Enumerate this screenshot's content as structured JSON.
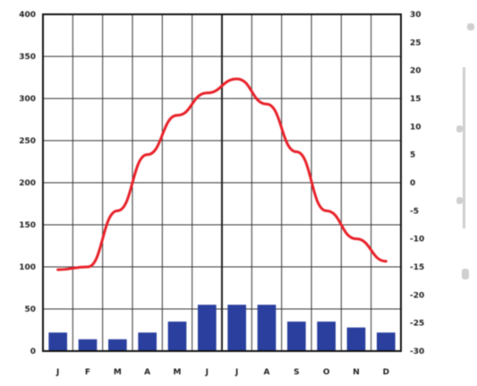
{
  "chart_data": {
    "type": "bar",
    "title": "",
    "xlabel": "",
    "categories": [
      "J",
      "F",
      "M",
      "A",
      "M",
      "J",
      "J",
      "A",
      "S",
      "O",
      "N",
      "D"
    ],
    "left_axis": {
      "ylim": [
        0,
        400
      ],
      "ticks": [
        0,
        50,
        100,
        150,
        200,
        250,
        300,
        350,
        400
      ]
    },
    "right_axis": {
      "ylim": [
        -30,
        30
      ],
      "ticks": [
        -30,
        -25,
        -20,
        -15,
        -10,
        -5,
        0,
        5,
        10,
        15,
        20,
        25,
        30
      ]
    },
    "series": [
      {
        "kind": "bar",
        "axis": "left",
        "color": "#2a3f9e",
        "values": [
          22,
          14,
          14,
          22,
          35,
          55,
          55,
          55,
          35,
          35,
          28,
          22
        ]
      },
      {
        "kind": "line",
        "axis": "right",
        "color": "#e8222a",
        "values": [
          -15.5,
          -15,
          -5,
          5,
          12,
          16,
          18.5,
          14,
          5.5,
          -5,
          -10,
          -14
        ]
      }
    ],
    "grid": true
  }
}
